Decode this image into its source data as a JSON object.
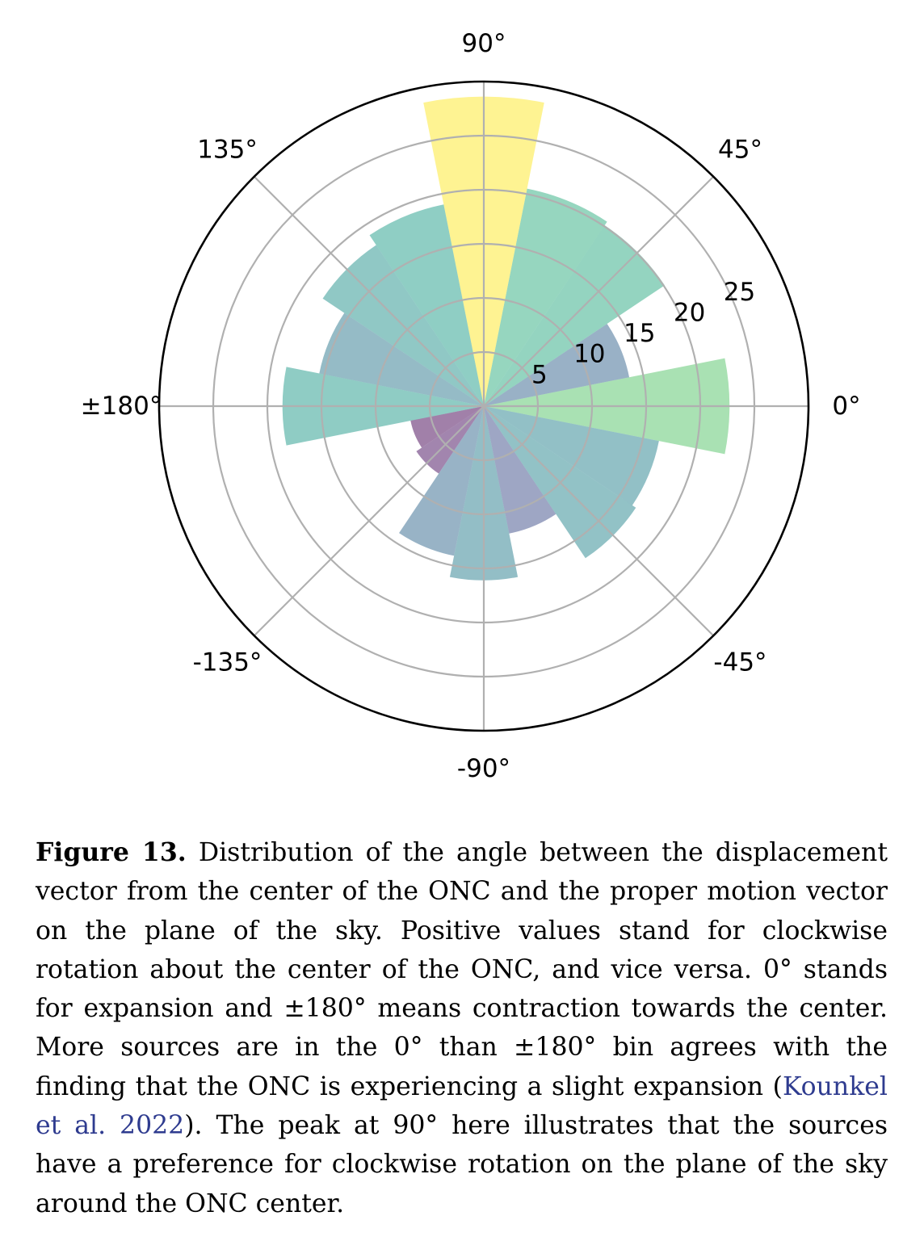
{
  "chart_data": {
    "type": "polar-bar",
    "angle_labels": [
      {
        "deg": 0,
        "text": "0°"
      },
      {
        "deg": 45,
        "text": "45°"
      },
      {
        "deg": 90,
        "text": "90°"
      },
      {
        "deg": 135,
        "text": "135°"
      },
      {
        "deg": 180,
        "text": "±180°"
      },
      {
        "deg": -135,
        "text": "-135°"
      },
      {
        "deg": -90,
        "text": "-90°"
      },
      {
        "deg": -45,
        "text": "-45°"
      }
    ],
    "radial_ticks": [
      5,
      10,
      15,
      20,
      25
    ],
    "rlim": [
      0,
      30
    ],
    "bin_width_deg": 22.5,
    "bins": [
      {
        "center": 0,
        "value": 22.7
      },
      {
        "center": 22.5,
        "value": 13.7
      },
      {
        "center": 45,
        "value": 20.1
      },
      {
        "center": 67.5,
        "value": 20.5
      },
      {
        "center": 90,
        "value": 28.6
      },
      {
        "center": 112.5,
        "value": 19.0
      },
      {
        "center": 135,
        "value": 17.9
      },
      {
        "center": 157.5,
        "value": 15.5
      },
      {
        "center": 180,
        "value": 18.6
      },
      {
        "center": -157.5,
        "value": 6.9
      },
      {
        "center": -135,
        "value": 7.5
      },
      {
        "center": -112.5,
        "value": 14.1
      },
      {
        "center": -90,
        "value": 16.1
      },
      {
        "center": -67.5,
        "value": 12.0
      },
      {
        "center": -45,
        "value": 16.9
      },
      {
        "center": -22.5,
        "value": 16.5
      }
    ],
    "colormap": "viridis",
    "grid": true
  },
  "caption": {
    "label": "Figure 13.",
    "text_before_cite": "Distribution of the angle between the displacement vector from the center of the ONC and the proper motion vector on the plane of the sky. Positive values stand for clockwise rotation about the center of the ONC, and vice versa. 0° stands for expansion and ±180° means contraction towards the center. More sources are in the 0° than ±180° bin agrees with the finding that the ONC is experiencing a slight expansion (",
    "cite": "Kounkel et al. 2022",
    "text_after_cite": "). The peak at 90° here illustrates that the sources have a preference for clockwise rotation on the plane of the sky around the ONC center."
  }
}
